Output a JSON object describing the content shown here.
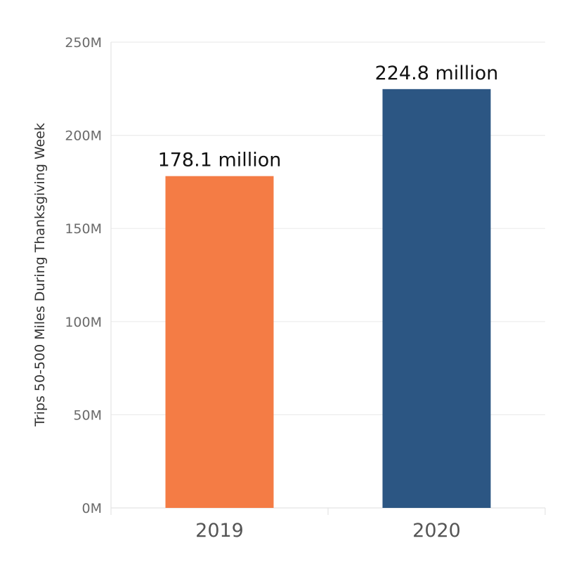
{
  "chart_data": {
    "type": "bar",
    "title": "",
    "xlabel": "",
    "ylabel": "Trips 50-500 Miles During Thanksgiving Week",
    "categories": [
      "2019",
      "2020"
    ],
    "values": [
      178100000,
      224800000
    ],
    "data_labels": [
      "178.1 million",
      "224.8 million"
    ],
    "bar_colors": [
      "#f47c45",
      "#2c5683"
    ],
    "ylim": [
      0,
      250000000
    ],
    "y_ticks": [
      {
        "value": 0,
        "label": "0M"
      },
      {
        "value": 50000000,
        "label": "50M"
      },
      {
        "value": 100000000,
        "label": "100M"
      },
      {
        "value": 150000000,
        "label": "150M"
      },
      {
        "value": 200000000,
        "label": "200M"
      },
      {
        "value": 250000000,
        "label": "250M"
      }
    ],
    "grid": true,
    "legend": "none"
  }
}
